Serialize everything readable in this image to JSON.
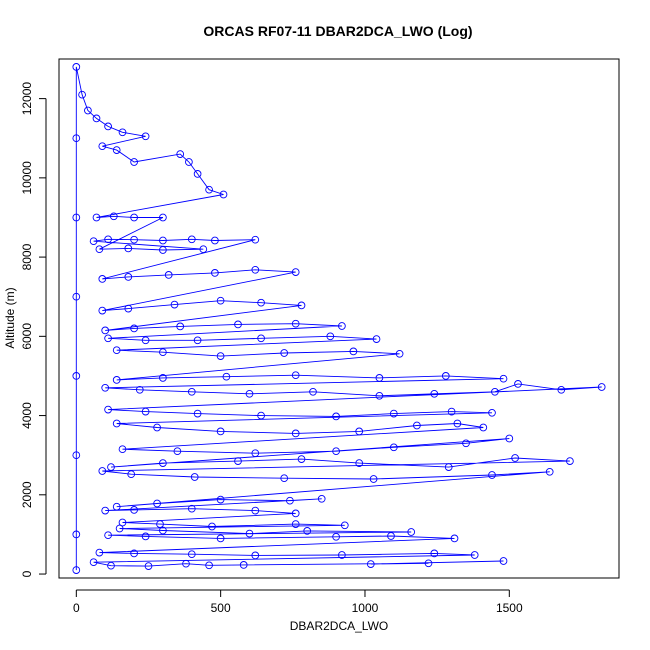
{
  "chart_data": {
    "type": "scatter",
    "title": "ORCAS RF07-11 DBAR2DCA_LWO (Log)",
    "xlabel": "DBAR2DCA_LWO",
    "ylabel": "Altitude (m)",
    "xlim": [
      -60,
      1880
    ],
    "ylim": [
      -100,
      13000
    ],
    "xticks": [
      0,
      500,
      1000,
      1500
    ],
    "yticks": [
      0,
      2000,
      4000,
      6000,
      8000,
      10000,
      12000
    ],
    "grid": false,
    "legend": "none",
    "series": [
      {
        "color": "#0000ff",
        "line": true,
        "marker": "open-circle",
        "points": [
          [
            1480,
            330
          ],
          [
            1020,
            250
          ],
          [
            1220,
            270
          ],
          [
            580,
            230
          ],
          [
            460,
            220
          ],
          [
            380,
            260
          ],
          [
            250,
            200
          ],
          [
            120,
            210
          ],
          [
            60,
            300
          ],
          [
            1380,
            480
          ],
          [
            1240,
            520
          ],
          [
            920,
            480
          ],
          [
            620,
            470
          ],
          [
            400,
            500
          ],
          [
            200,
            520
          ],
          [
            80,
            540
          ],
          [
            1310,
            900
          ],
          [
            1090,
            960
          ],
          [
            900,
            940
          ],
          [
            500,
            900
          ],
          [
            240,
            950
          ],
          [
            110,
            980
          ],
          [
            1160,
            1060
          ],
          [
            800,
            1090
          ],
          [
            600,
            1020
          ],
          [
            300,
            1100
          ],
          [
            150,
            1150
          ],
          [
            930,
            1230
          ],
          [
            760,
            1260
          ],
          [
            470,
            1200
          ],
          [
            290,
            1260
          ],
          [
            160,
            1300
          ],
          [
            760,
            1530
          ],
          [
            620,
            1600
          ],
          [
            400,
            1650
          ],
          [
            200,
            1620
          ],
          [
            100,
            1600
          ],
          [
            850,
            1900
          ],
          [
            740,
            1850
          ],
          [
            500,
            1880
          ],
          [
            280,
            1780
          ],
          [
            140,
            1700
          ],
          [
            1640,
            2580
          ],
          [
            1440,
            2500
          ],
          [
            1030,
            2400
          ],
          [
            720,
            2420
          ],
          [
            410,
            2450
          ],
          [
            190,
            2520
          ],
          [
            90,
            2600
          ],
          [
            1710,
            2850
          ],
          [
            1520,
            2930
          ],
          [
            1290,
            2700
          ],
          [
            980,
            2800
          ],
          [
            780,
            2900
          ],
          [
            560,
            2850
          ],
          [
            300,
            2800
          ],
          [
            120,
            2700
          ],
          [
            1500,
            3420
          ],
          [
            1350,
            3300
          ],
          [
            1100,
            3200
          ],
          [
            900,
            3100
          ],
          [
            620,
            3050
          ],
          [
            350,
            3100
          ],
          [
            160,
            3150
          ],
          [
            1410,
            3700
          ],
          [
            1320,
            3800
          ],
          [
            1180,
            3750
          ],
          [
            980,
            3600
          ],
          [
            760,
            3550
          ],
          [
            500,
            3600
          ],
          [
            280,
            3700
          ],
          [
            140,
            3800
          ],
          [
            1440,
            4070
          ],
          [
            1300,
            4100
          ],
          [
            1100,
            4050
          ],
          [
            900,
            3980
          ],
          [
            640,
            4000
          ],
          [
            420,
            4050
          ],
          [
            240,
            4100
          ],
          [
            110,
            4150
          ],
          [
            1820,
            4720
          ],
          [
            1680,
            4650
          ],
          [
            1530,
            4800
          ],
          [
            1450,
            4600
          ],
          [
            1240,
            4550
          ],
          [
            1050,
            4500
          ],
          [
            820,
            4600
          ],
          [
            600,
            4550
          ],
          [
            400,
            4600
          ],
          [
            220,
            4650
          ],
          [
            100,
            4700
          ],
          [
            1480,
            4930
          ],
          [
            1280,
            5000
          ],
          [
            1050,
            4950
          ],
          [
            760,
            5020
          ],
          [
            520,
            4980
          ],
          [
            300,
            4950
          ],
          [
            140,
            4900
          ],
          [
            1120,
            5560
          ],
          [
            960,
            5620
          ],
          [
            720,
            5580
          ],
          [
            500,
            5500
          ],
          [
            300,
            5600
          ],
          [
            140,
            5650
          ],
          [
            1040,
            5930
          ],
          [
            880,
            6000
          ],
          [
            640,
            5950
          ],
          [
            420,
            5900
          ],
          [
            240,
            5900
          ],
          [
            110,
            5950
          ],
          [
            920,
            6260
          ],
          [
            760,
            6320
          ],
          [
            560,
            6300
          ],
          [
            360,
            6250
          ],
          [
            200,
            6200
          ],
          [
            100,
            6150
          ],
          [
            780,
            6780
          ],
          [
            640,
            6850
          ],
          [
            500,
            6900
          ],
          [
            340,
            6800
          ],
          [
            180,
            6700
          ],
          [
            90,
            6650
          ],
          [
            760,
            7620
          ],
          [
            620,
            7680
          ],
          [
            480,
            7600
          ],
          [
            320,
            7550
          ],
          [
            180,
            7500
          ],
          [
            90,
            7450
          ],
          [
            620,
            8440
          ],
          [
            480,
            8420
          ],
          [
            400,
            8450
          ],
          [
            300,
            8420
          ],
          [
            200,
            8440
          ],
          [
            110,
            8450
          ],
          [
            60,
            8400
          ],
          [
            440,
            8200
          ],
          [
            300,
            8180
          ],
          [
            180,
            8220
          ],
          [
            80,
            8200
          ],
          [
            300,
            9000
          ],
          [
            200,
            9000
          ],
          [
            130,
            9030
          ],
          [
            70,
            9000
          ],
          [
            510,
            9580
          ],
          [
            460,
            9700
          ],
          [
            420,
            10100
          ],
          [
            390,
            10400
          ],
          [
            360,
            10600
          ],
          [
            200,
            10400
          ],
          [
            140,
            10700
          ],
          [
            90,
            10800
          ],
          [
            240,
            11050
          ],
          [
            160,
            11150
          ],
          [
            110,
            11300
          ],
          [
            70,
            11500
          ],
          [
            40,
            11700
          ],
          [
            20,
            12100
          ],
          [
            0,
            12800
          ],
          [
            0,
            11000
          ],
          [
            0,
            9000
          ],
          [
            0,
            7000
          ],
          [
            0,
            5000
          ],
          [
            0,
            3000
          ],
          [
            0,
            1000
          ],
          [
            0,
            100
          ]
        ]
      }
    ]
  }
}
